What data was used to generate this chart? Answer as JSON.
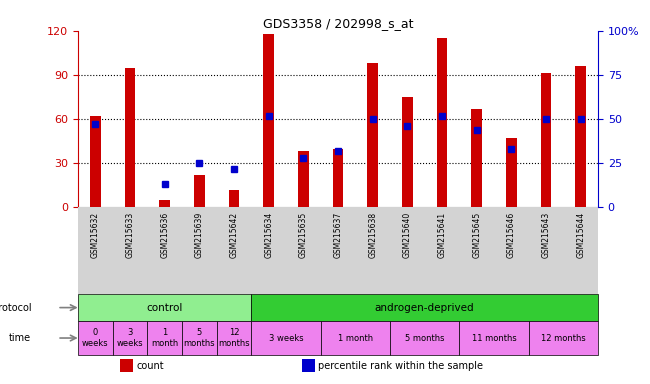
{
  "title": "GDS3358 / 202998_s_at",
  "samples": [
    "GSM215632",
    "GSM215633",
    "GSM215636",
    "GSM215639",
    "GSM215642",
    "GSM215634",
    "GSM215635",
    "GSM215637",
    "GSM215638",
    "GSM215640",
    "GSM215641",
    "GSM215645",
    "GSM215646",
    "GSM215643",
    "GSM215644"
  ],
  "count_values": [
    62,
    95,
    5,
    22,
    12,
    118,
    38,
    40,
    98,
    75,
    115,
    67,
    47,
    91,
    96
  ],
  "percentile_values": [
    47,
    null,
    13,
    25,
    22,
    52,
    28,
    32,
    50,
    46,
    52,
    44,
    33,
    50,
    50
  ],
  "ylim_left": [
    0,
    120
  ],
  "ylim_right": [
    0,
    100
  ],
  "yticks_left": [
    0,
    30,
    60,
    90,
    120
  ],
  "yticks_right": [
    0,
    25,
    50,
    75,
    100
  ],
  "yticklabels_right": [
    "0",
    "25",
    "50",
    "75",
    "100%"
  ],
  "bar_color": "#CC0000",
  "percentile_color": "#0000CC",
  "bar_width": 0.3,
  "growth_protocol_groups": [
    {
      "label": "control",
      "start": 0,
      "end": 5,
      "color": "#90EE90"
    },
    {
      "label": "androgen-deprived",
      "start": 5,
      "end": 15,
      "color": "#33CC33"
    }
  ],
  "time_groups": [
    {
      "label": "0\nweeks",
      "start": 0,
      "end": 1
    },
    {
      "label": "3\nweeks",
      "start": 1,
      "end": 2
    },
    {
      "label": "1\nmonth",
      "start": 2,
      "end": 3
    },
    {
      "label": "5\nmonths",
      "start": 3,
      "end": 4
    },
    {
      "label": "12\nmonths",
      "start": 4,
      "end": 5
    },
    {
      "label": "3 weeks",
      "start": 5,
      "end": 7
    },
    {
      "label": "1 month",
      "start": 7,
      "end": 9
    },
    {
      "label": "5 months",
      "start": 9,
      "end": 11
    },
    {
      "label": "11 months",
      "start": 11,
      "end": 13
    },
    {
      "label": "12 months",
      "start": 13,
      "end": 15
    }
  ],
  "time_color": "#EE82EE",
  "bar_color_red": "#CC0000",
  "pct_color_blue": "#0000CC",
  "bg_white": "#FFFFFF",
  "xtick_bg": "#D3D3D3",
  "grid_color": "#000000",
  "left_tick_color": "#CC0000",
  "right_tick_color": "#0000CC"
}
